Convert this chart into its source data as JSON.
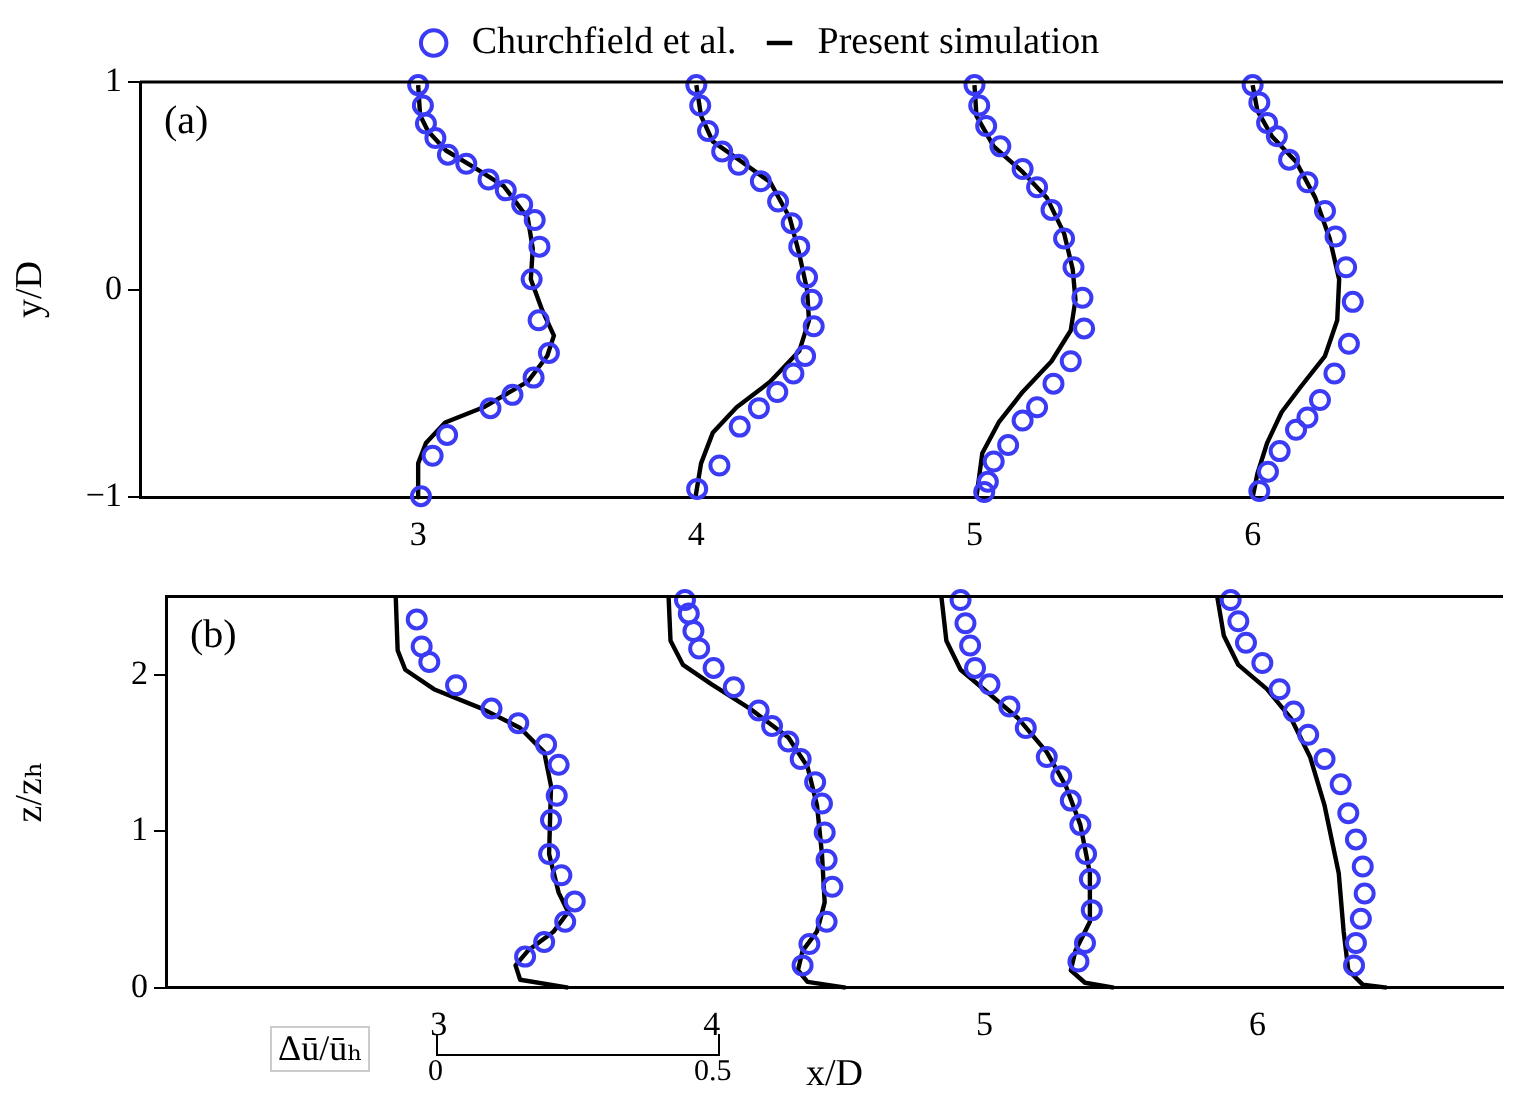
{
  "chart_data": [
    {
      "type": "scatter",
      "ylabel": "y/D",
      "annotations": [
        "(a)"
      ],
      "xlim": [
        2.0,
        6.9
      ],
      "xticks": [
        3,
        4,
        5,
        6
      ],
      "ylim": [
        -1,
        1
      ],
      "yticks": [
        -1,
        0,
        1
      ],
      "grid": false,
      "legend": "top",
      "series": [
        {
          "name": "Churchfield et al.",
          "type": "scatter",
          "marker": "circle",
          "color": "#3b3bf5",
          "x": [
            3.0,
            3.017,
            3.028,
            3.062,
            3.107,
            3.173,
            3.253,
            3.315,
            3.374,
            3.419,
            3.436,
            3.408,
            3.433,
            3.47,
            3.415,
            3.339,
            3.26,
            3.104,
            3.052,
            3.01
          ],
          "values": [
            0.985,
            0.887,
            0.8,
            0.73,
            0.65,
            0.606,
            0.53,
            0.478,
            0.41,
            0.335,
            0.207,
            0.05,
            -0.148,
            -0.305,
            -0.424,
            -0.507,
            -0.571,
            -0.7,
            -0.8,
            -0.995
          ]
        },
        {
          "name": "Present simulation",
          "type": "line",
          "marker": "none",
          "line_style": "solid",
          "color": "#000000",
          "x": [
            3.0,
            3.007,
            3.035,
            3.1,
            3.204,
            3.308,
            3.394,
            3.412,
            3.405,
            3.446,
            3.488,
            3.464,
            3.394,
            3.235,
            3.097,
            3.028,
            3.0,
            3.0
          ],
          "values": [
            0.985,
            0.84,
            0.764,
            0.67,
            0.586,
            0.498,
            0.345,
            0.197,
            0.05,
            -0.099,
            -0.222,
            -0.32,
            -0.443,
            -0.567,
            -0.64,
            -0.739,
            -0.837,
            -1.0
          ]
        },
        {
          "type": "scatter",
          "marker": "circle",
          "color": "#3b3bf5",
          "x": [
            4.0,
            4.014,
            4.042,
            4.093,
            4.152,
            4.232,
            4.294,
            4.343,
            4.37,
            4.398,
            4.415,
            4.422,
            4.391,
            4.349,
            4.291,
            4.225,
            4.156,
            4.083,
            4.003
          ],
          "values": [
            0.985,
            0.887,
            0.764,
            0.665,
            0.601,
            0.522,
            0.424,
            0.32,
            0.207,
            0.059,
            -0.049,
            -0.177,
            -0.32,
            -0.404,
            -0.493,
            -0.571,
            -0.66,
            -0.847,
            -0.96
          ]
        },
        {
          "type": "line",
          "marker": "none",
          "line_style": "solid",
          "color": "#000000",
          "x": [
            4.0,
            4.017,
            4.059,
            4.163,
            4.266,
            4.336,
            4.37,
            4.398,
            4.405,
            4.37,
            4.266,
            4.145,
            4.059,
            4.017,
            3.997
          ],
          "values": [
            0.985,
            0.837,
            0.714,
            0.616,
            0.517,
            0.345,
            0.172,
            0.0,
            -0.148,
            -0.296,
            -0.443,
            -0.567,
            -0.69,
            -0.837,
            -1.0
          ]
        },
        {
          "type": "scatter",
          "marker": "circle",
          "color": "#3b3bf5",
          "x": [
            5.0,
            5.017,
            5.042,
            5.093,
            5.173,
            5.225,
            5.277,
            5.322,
            5.356,
            5.388,
            5.394,
            5.346,
            5.284,
            5.225,
            5.173,
            5.121,
            5.069,
            5.048,
            5.035
          ],
          "values": [
            0.985,
            0.887,
            0.788,
            0.69,
            0.581,
            0.493,
            0.384,
            0.246,
            0.108,
            -0.039,
            -0.187,
            -0.345,
            -0.453,
            -0.567,
            -0.631,
            -0.749,
            -0.828,
            -0.926,
            -0.975
          ]
        },
        {
          "type": "line",
          "marker": "none",
          "line_style": "solid",
          "color": "#000000",
          "x": [
            5.0,
            5.007,
            5.069,
            5.173,
            5.26,
            5.322,
            5.353,
            5.363,
            5.346,
            5.277,
            5.173,
            5.087,
            5.028,
            5.007
          ],
          "values": [
            0.985,
            0.837,
            0.69,
            0.567,
            0.443,
            0.271,
            0.099,
            -0.049,
            -0.197,
            -0.345,
            -0.493,
            -0.64,
            -0.788,
            -1.0
          ]
        },
        {
          "type": "scatter",
          "marker": "circle",
          "color": "#3b3bf5",
          "x": [
            6.0,
            6.024,
            6.052,
            6.087,
            6.131,
            6.197,
            6.26,
            6.298,
            6.336,
            6.36,
            6.346,
            6.294,
            6.242,
            6.197,
            6.156,
            6.097,
            6.055,
            6.024
          ],
          "values": [
            0.985,
            0.901,
            0.803,
            0.739,
            0.626,
            0.517,
            0.379,
            0.256,
            0.108,
            -0.059,
            -0.261,
            -0.404,
            -0.532,
            -0.616,
            -0.675,
            -0.778,
            -0.877,
            -0.97
          ]
        },
        {
          "type": "line",
          "marker": "none",
          "line_style": "solid",
          "color": "#000000",
          "x": [
            6.0,
            6.017,
            6.069,
            6.156,
            6.225,
            6.277,
            6.311,
            6.304,
            6.26,
            6.173,
            6.104,
            6.052,
            6.017,
            6.0
          ],
          "values": [
            0.985,
            0.862,
            0.739,
            0.616,
            0.443,
            0.246,
            0.049,
            -0.148,
            -0.32,
            -0.468,
            -0.591,
            -0.739,
            -0.887,
            -1.0
          ]
        }
      ]
    },
    {
      "type": "scatter",
      "xlabel": "x/D",
      "ylabel": "z/zₕ",
      "annotations": [
        "(b)",
        "Δū/ūₕ",
        "0",
        "0.5"
      ],
      "xlim": [
        2.0,
        6.9
      ],
      "xticks": [
        3,
        4,
        5,
        6
      ],
      "ylim": [
        0,
        2.5
      ],
      "yticks": [
        0,
        1,
        2
      ],
      "grid": false,
      "series": [
        {
          "type": "scatter",
          "marker": "circle",
          "color": "#3b3bf5",
          "x": [
            2.919,
            2.937,
            2.965,
            3.063,
            3.193,
            3.291,
            3.393,
            3.439,
            3.432,
            3.411,
            3.404,
            3.449,
            3.498,
            3.463,
            3.386,
            3.316
          ],
          "values": [
            2.353,
            2.18,
            2.081,
            1.932,
            1.783,
            1.69,
            1.554,
            1.424,
            1.226,
            1.071,
            0.854,
            0.718,
            0.551,
            0.421,
            0.291,
            0.198
          ]
        },
        {
          "type": "line",
          "marker": "none",
          "line_style": "solid",
          "color": "#000000",
          "x": [
            2.842,
            2.849,
            2.877,
            2.982,
            3.158,
            3.298,
            3.386,
            3.411,
            3.404,
            3.439,
            3.474,
            3.421,
            3.326,
            3.281,
            3.298,
            3.474
          ],
          "values": [
            2.495,
            2.155,
            2.031,
            1.907,
            1.783,
            1.659,
            1.505,
            1.288,
            0.854,
            0.607,
            0.483,
            0.359,
            0.235,
            0.142,
            0.05,
            0.0
          ]
        },
        {
          "type": "scatter",
          "marker": "circle",
          "color": "#3b3bf5",
          "x": [
            3.902,
            3.916,
            3.933,
            3.954,
            4.007,
            4.081,
            4.172,
            4.221,
            4.281,
            4.326,
            4.379,
            4.404,
            4.414,
            4.421,
            4.442,
            4.421,
            4.358,
            4.333
          ],
          "values": [
            2.477,
            2.39,
            2.279,
            2.167,
            2.043,
            1.92,
            1.771,
            1.672,
            1.573,
            1.461,
            1.313,
            1.176,
            0.991,
            0.817,
            0.644,
            0.421,
            0.279,
            0.142
          ]
        },
        {
          "type": "line",
          "marker": "none",
          "line_style": "solid",
          "color": "#000000",
          "x": [
            3.842,
            3.849,
            3.895,
            4.0,
            4.14,
            4.281,
            4.351,
            4.386,
            4.404,
            4.414,
            4.386,
            4.333,
            4.316,
            4.351,
            4.491
          ],
          "values": [
            2.495,
            2.217,
            2.062,
            1.938,
            1.783,
            1.598,
            1.412,
            1.164,
            0.854,
            0.545,
            0.359,
            0.235,
            0.111,
            0.037,
            0.0
          ]
        },
        {
          "type": "scatter",
          "marker": "circle",
          "color": "#3b3bf5",
          "x": [
            4.912,
            4.93,
            4.947,
            4.965,
            5.018,
            5.091,
            5.151,
            5.228,
            5.281,
            5.316,
            5.351,
            5.372,
            5.386,
            5.393,
            5.368,
            5.344
          ],
          "values": [
            2.477,
            2.328,
            2.186,
            2.043,
            1.938,
            1.796,
            1.659,
            1.474,
            1.35,
            1.195,
            1.04,
            0.854,
            0.694,
            0.495,
            0.285,
            0.167
          ]
        },
        {
          "type": "line",
          "marker": "none",
          "line_style": "solid",
          "color": "#000000",
          "x": [
            4.842,
            4.86,
            4.912,
            5.018,
            5.123,
            5.228,
            5.298,
            5.351,
            5.386,
            5.386,
            5.333,
            5.316,
            5.368,
            5.474
          ],
          "values": [
            2.495,
            2.217,
            2.031,
            1.876,
            1.721,
            1.505,
            1.288,
            1.04,
            0.731,
            0.421,
            0.235,
            0.111,
            0.031,
            0.0
          ]
        },
        {
          "type": "scatter",
          "marker": "circle",
          "color": "#3b3bf5",
          "x": [
            5.902,
            5.93,
            5.958,
            6.018,
            6.081,
            6.133,
            6.186,
            6.246,
            6.305,
            6.333,
            6.361,
            6.386,
            6.393,
            6.379,
            6.361,
            6.354
          ],
          "values": [
            2.477,
            2.341,
            2.204,
            2.074,
            1.907,
            1.765,
            1.616,
            1.461,
            1.3,
            1.115,
            0.947,
            0.774,
            0.601,
            0.44,
            0.285,
            0.142
          ]
        },
        {
          "type": "line",
          "marker": "none",
          "line_style": "solid",
          "color": "#000000",
          "x": [
            5.853,
            5.877,
            5.93,
            6.035,
            6.123,
            6.193,
            6.246,
            6.298,
            6.316,
            6.333,
            6.386,
            6.474
          ],
          "values": [
            2.495,
            2.248,
            2.062,
            1.907,
            1.721,
            1.474,
            1.164,
            0.731,
            0.359,
            0.111,
            0.019,
            0.0
          ]
        }
      ]
    }
  ]
}
